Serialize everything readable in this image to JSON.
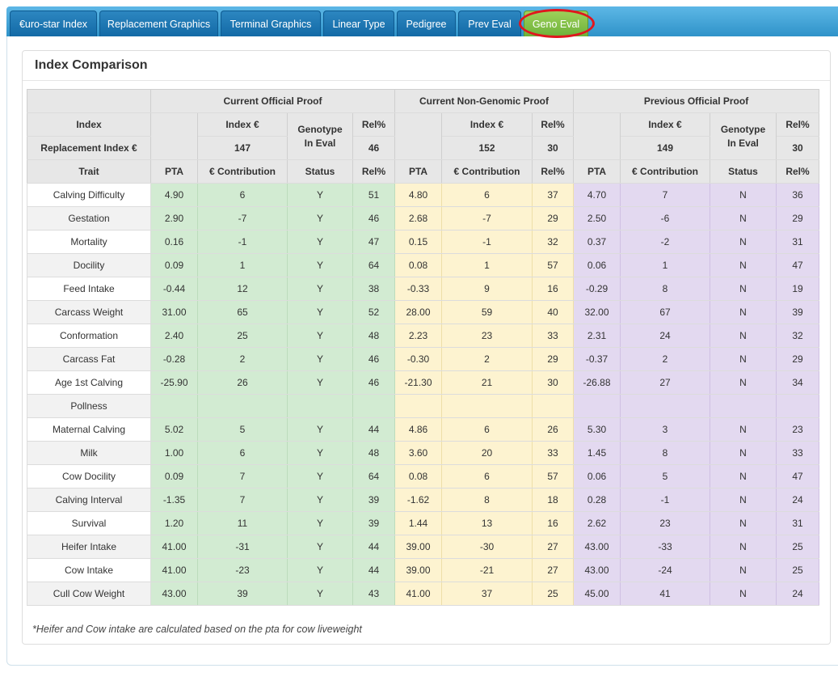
{
  "tabs": [
    {
      "label": "€uro-star Index"
    },
    {
      "label": "Replacement Graphics"
    },
    {
      "label": "Terminal Graphics"
    },
    {
      "label": "Linear Type"
    },
    {
      "label": "Pedigree"
    },
    {
      "label": "Prev Eval"
    },
    {
      "label": "Geno Eval"
    }
  ],
  "colors": {
    "current": "#d2ebd2",
    "non_genomic": "#fdf3d0",
    "previous": "#e3d9f0",
    "active_tab": "#7fbe45",
    "highlight_ring": "#e0161e"
  },
  "panel": {
    "title": "Index Comparison"
  },
  "groups": {
    "current": "Current Official Proof",
    "non_genomic": "Current Non-Genomic Proof",
    "previous": "Previous Official Proof"
  },
  "labels": {
    "index": "Index",
    "replacement_index": "Replacement Index €",
    "index_eur": "Index €",
    "rel": "Rel%",
    "genotype_line1": "Genotype",
    "genotype_line2": "In Eval",
    "trait": "Trait",
    "pta": "PTA",
    "contribution": "€ Contribution",
    "status": "Status"
  },
  "summary": {
    "current": {
      "index": "147",
      "rel": "46"
    },
    "non_genomic": {
      "index": "152",
      "rel": "30"
    },
    "previous": {
      "index": "149",
      "rel": "30"
    }
  },
  "rows": [
    {
      "trait": "Calving Difficulty",
      "c": [
        "4.90",
        "6",
        "Y",
        "51"
      ],
      "n": [
        "4.80",
        "6",
        "37"
      ],
      "p": [
        "4.70",
        "7",
        "N",
        "36"
      ]
    },
    {
      "trait": "Gestation",
      "c": [
        "2.90",
        "-7",
        "Y",
        "46"
      ],
      "n": [
        "2.68",
        "-7",
        "29"
      ],
      "p": [
        "2.50",
        "-6",
        "N",
        "29"
      ]
    },
    {
      "trait": "Mortality",
      "c": [
        "0.16",
        "-1",
        "Y",
        "47"
      ],
      "n": [
        "0.15",
        "-1",
        "32"
      ],
      "p": [
        "0.37",
        "-2",
        "N",
        "31"
      ]
    },
    {
      "trait": "Docility",
      "c": [
        "0.09",
        "1",
        "Y",
        "64"
      ],
      "n": [
        "0.08",
        "1",
        "57"
      ],
      "p": [
        "0.06",
        "1",
        "N",
        "47"
      ]
    },
    {
      "trait": "Feed Intake",
      "c": [
        "-0.44",
        "12",
        "Y",
        "38"
      ],
      "n": [
        "-0.33",
        "9",
        "16"
      ],
      "p": [
        "-0.29",
        "8",
        "N",
        "19"
      ]
    },
    {
      "trait": "Carcass Weight",
      "c": [
        "31.00",
        "65",
        "Y",
        "52"
      ],
      "n": [
        "28.00",
        "59",
        "40"
      ],
      "p": [
        "32.00",
        "67",
        "N",
        "39"
      ]
    },
    {
      "trait": "Conformation",
      "c": [
        "2.40",
        "25",
        "Y",
        "48"
      ],
      "n": [
        "2.23",
        "23",
        "33"
      ],
      "p": [
        "2.31",
        "24",
        "N",
        "32"
      ]
    },
    {
      "trait": "Carcass Fat",
      "c": [
        "-0.28",
        "2",
        "Y",
        "46"
      ],
      "n": [
        "-0.30",
        "2",
        "29"
      ],
      "p": [
        "-0.37",
        "2",
        "N",
        "29"
      ]
    },
    {
      "trait": "Age 1st Calving",
      "c": [
        "-25.90",
        "26",
        "Y",
        "46"
      ],
      "n": [
        "-21.30",
        "21",
        "30"
      ],
      "p": [
        "-26.88",
        "27",
        "N",
        "34"
      ]
    },
    {
      "trait": "Pollness",
      "c": [
        "",
        "",
        "",
        ""
      ],
      "n": [
        "",
        "",
        ""
      ],
      "p": [
        "",
        "",
        "",
        ""
      ]
    },
    {
      "trait": "Maternal Calving",
      "c": [
        "5.02",
        "5",
        "Y",
        "44"
      ],
      "n": [
        "4.86",
        "6",
        "26"
      ],
      "p": [
        "5.30",
        "3",
        "N",
        "23"
      ]
    },
    {
      "trait": "Milk",
      "c": [
        "1.00",
        "6",
        "Y",
        "48"
      ],
      "n": [
        "3.60",
        "20",
        "33"
      ],
      "p": [
        "1.45",
        "8",
        "N",
        "33"
      ]
    },
    {
      "trait": "Cow Docility",
      "c": [
        "0.09",
        "7",
        "Y",
        "64"
      ],
      "n": [
        "0.08",
        "6",
        "57"
      ],
      "p": [
        "0.06",
        "5",
        "N",
        "47"
      ]
    },
    {
      "trait": "Calving Interval",
      "c": [
        "-1.35",
        "7",
        "Y",
        "39"
      ],
      "n": [
        "-1.62",
        "8",
        "18"
      ],
      "p": [
        "0.28",
        "-1",
        "N",
        "24"
      ]
    },
    {
      "trait": "Survival",
      "c": [
        "1.20",
        "11",
        "Y",
        "39"
      ],
      "n": [
        "1.44",
        "13",
        "16"
      ],
      "p": [
        "2.62",
        "23",
        "N",
        "31"
      ]
    },
    {
      "trait": "Heifer Intake",
      "c": [
        "41.00",
        "-31",
        "Y",
        "44"
      ],
      "n": [
        "39.00",
        "-30",
        "27"
      ],
      "p": [
        "43.00",
        "-33",
        "N",
        "25"
      ]
    },
    {
      "trait": "Cow Intake",
      "c": [
        "41.00",
        "-23",
        "Y",
        "44"
      ],
      "n": [
        "39.00",
        "-21",
        "27"
      ],
      "p": [
        "43.00",
        "-24",
        "N",
        "25"
      ]
    },
    {
      "trait": "Cull Cow Weight",
      "c": [
        "43.00",
        "39",
        "Y",
        "43"
      ],
      "n": [
        "41.00",
        "37",
        "25"
      ],
      "p": [
        "45.00",
        "41",
        "N",
        "24"
      ]
    }
  ],
  "footnote": "*Heifer and Cow intake are calculated based on the pta for cow liveweight"
}
